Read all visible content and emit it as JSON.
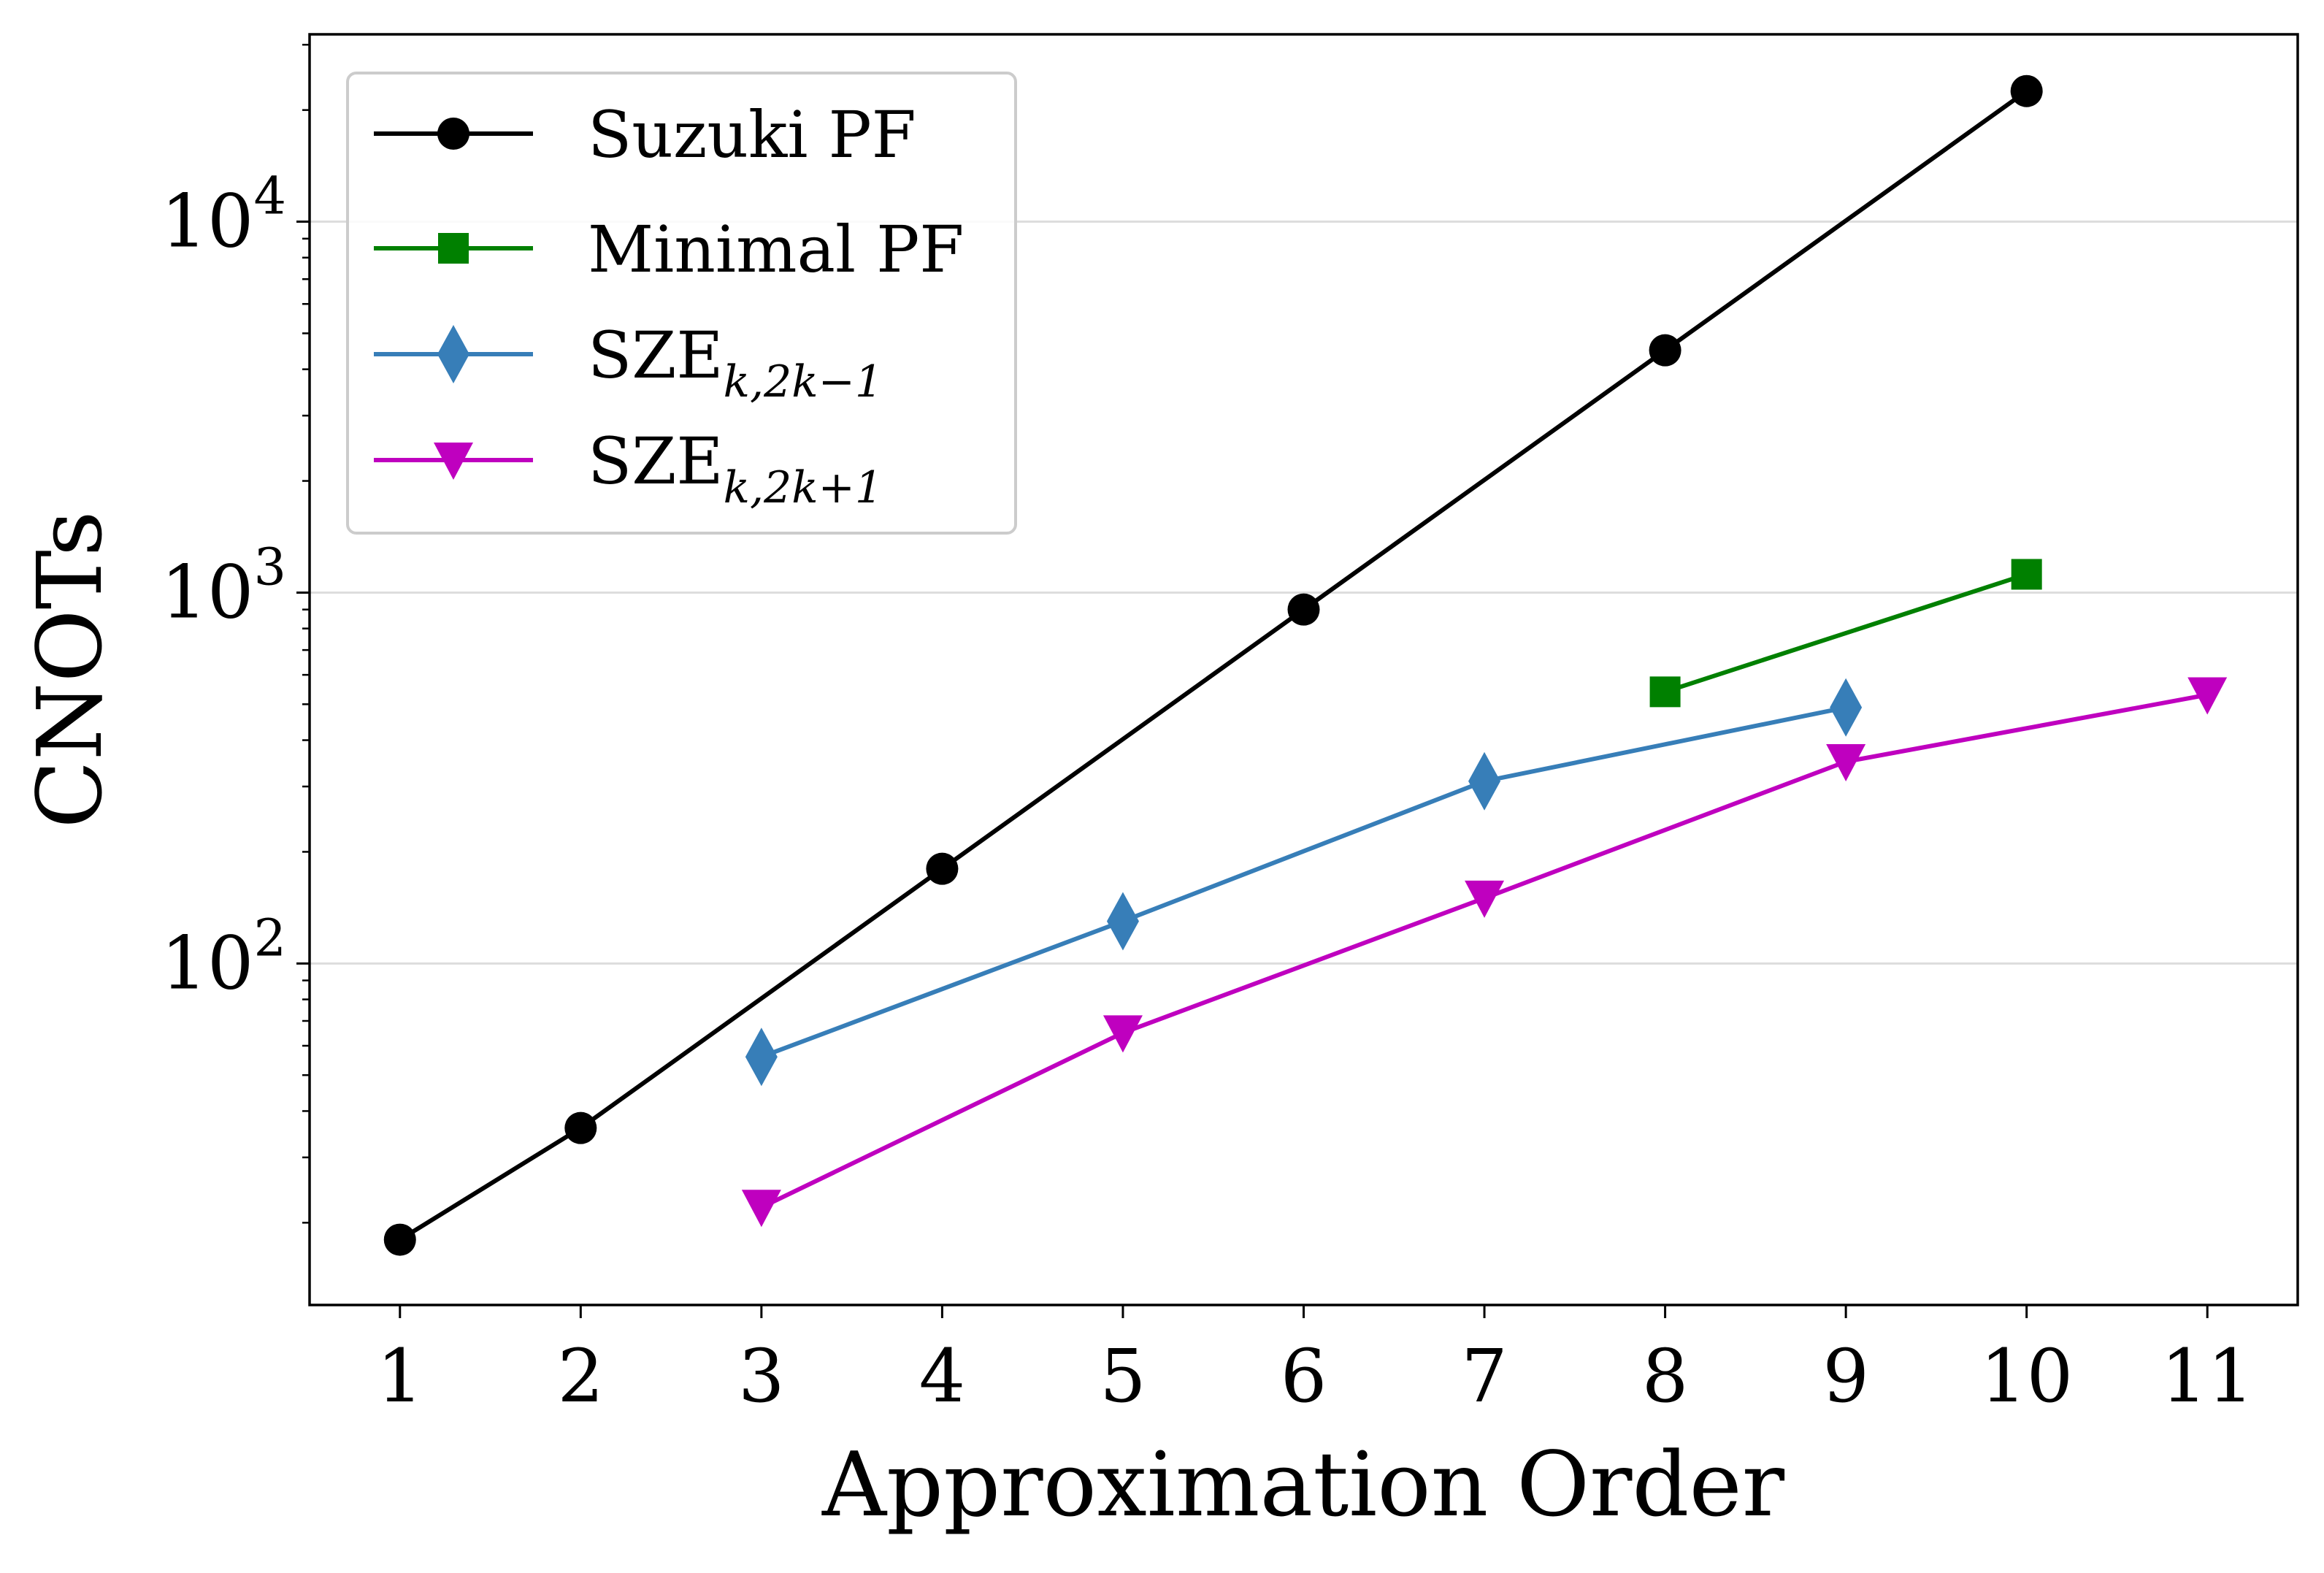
{
  "chart_data": {
    "type": "line",
    "title": "",
    "xlabel": "Approximation Order",
    "ylabel": "CNOTs",
    "yscale": "log",
    "xlim": [
      0.5,
      11.5
    ],
    "ylim": [
      12,
      32000
    ],
    "x_ticks": [
      1,
      2,
      3,
      4,
      5,
      6,
      7,
      8,
      9,
      10,
      11
    ],
    "y_ticks": [
      {
        "value": 100,
        "base": "10",
        "exp": "2"
      },
      {
        "value": 1000,
        "base": "10",
        "exp": "3"
      },
      {
        "value": 10000,
        "base": "10",
        "exp": "4"
      }
    ],
    "grid": "horizontal major",
    "legend_position": "upper-left",
    "series": [
      {
        "name": "Suzuki PF",
        "label_main": "Suzuki PF",
        "label_sub": "",
        "color": "#000000",
        "marker": "circle",
        "x": [
          1,
          2,
          4,
          6,
          8,
          10
        ],
        "values": [
          18,
          36,
          180,
          900,
          4500,
          22500
        ]
      },
      {
        "name": "Minimal PF",
        "label_main": "Minimal PF",
        "label_sub": "",
        "color": "#008000",
        "marker": "square",
        "x": [
          8,
          10
        ],
        "values": [
          540,
          1120
        ]
      },
      {
        "name": "SZE_{k,2k-1}",
        "label_main": "SZE",
        "label_sub": "k,2k−1",
        "color": "#377eb8",
        "marker": "diamond",
        "x": [
          3,
          5,
          7,
          9
        ],
        "values": [
          56,
          130,
          310,
          490
        ]
      },
      {
        "name": "SZE_{k,2k+1}",
        "label_main": "SZE",
        "label_sub": "k,2k+1",
        "color": "#bf00bf",
        "marker": "triangle-down",
        "x": [
          3,
          5,
          7,
          9,
          11
        ],
        "values": [
          22,
          65,
          150,
          350,
          530
        ]
      }
    ]
  }
}
